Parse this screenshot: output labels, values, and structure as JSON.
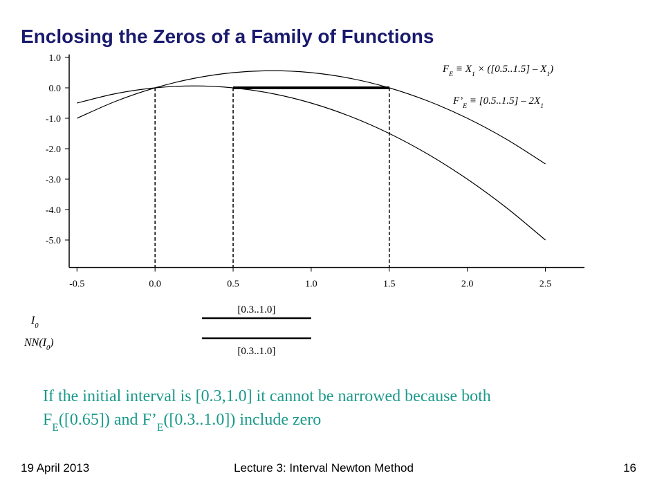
{
  "title": "Enclosing the Zeros of a Family of Functions",
  "chart_data": {
    "type": "line",
    "x": [
      -0.5,
      -0.25,
      0,
      0.25,
      0.5,
      0.75,
      1,
      1.25,
      1.5,
      1.75,
      2,
      2.25,
      2.5
    ],
    "series": [
      {
        "color": "#000000",
        "values": [
          -1.0,
          -0.4375,
          0,
          0.3125,
          0.5,
          0.5625,
          0.5,
          0.3125,
          0,
          -0.4375,
          -1.0,
          -1.6875,
          -2.5
        ]
      },
      {
        "color": "#000000",
        "values": [
          -0.5,
          -0.1875,
          0,
          0.0625,
          0,
          -0.1875,
          -0.5,
          -0.9375,
          -1.5,
          -2.1875,
          -3.0,
          -3.9375,
          -5.0
        ]
      }
    ],
    "xlim": [
      -0.55,
      2.75
    ],
    "ylim": [
      -5.9,
      1.1
    ],
    "xticks": [
      -0.5,
      {
        "value": 0,
        "label": "0.0"
      },
      0.5,
      {
        "value": 1,
        "label": "1.0"
      },
      1.5,
      {
        "value": 2,
        "label": "2.0"
      },
      2.5
    ],
    "yticks": [
      {
        "value": 1,
        "label": "1.0"
      },
      {
        "value": 0,
        "label": "0.0"
      },
      {
        "value": -1,
        "label": "-1.0"
      },
      {
        "value": -2,
        "label": "-2.0"
      },
      {
        "value": -3,
        "label": "-3.0"
      },
      {
        "value": -4,
        "label": "-4.0"
      },
      {
        "value": -5,
        "label": "-5.0"
      }
    ],
    "dashed_x": [
      0,
      0.5,
      1.5
    ],
    "zero_interval": [
      0.5,
      1.5
    ],
    "annotations": [
      [
        "F",
        "E",
        " ≡ X",
        "1",
        " × ([0.5..1.5] – X",
        "1",
        ")"
      ],
      [
        "F’",
        "E",
        " ≡ [0.5..1.5] – 2X",
        "1"
      ]
    ],
    "intervals": [
      {
        "name": [
          "I",
          "0"
        ],
        "label": "[0.3..1.0]",
        "range": [
          0.3,
          1.0
        ]
      },
      {
        "name": [
          "NN(I",
          "0",
          ")"
        ],
        "label": "[0.3..1.0]",
        "range": [
          0.3,
          1.0
        ]
      }
    ]
  },
  "caption": [
    [
      "If the initial interval is [0.3,1.0] it cannot be narrowed because both"
    ],
    [
      "F",
      "E",
      "([0.65]) and F’",
      "E",
      "([0.3..1.0]) include zero"
    ]
  ],
  "footer": {
    "date": "19 April 2013",
    "lecture": "Lecture 3: Interval Newton Method",
    "page": "16"
  }
}
